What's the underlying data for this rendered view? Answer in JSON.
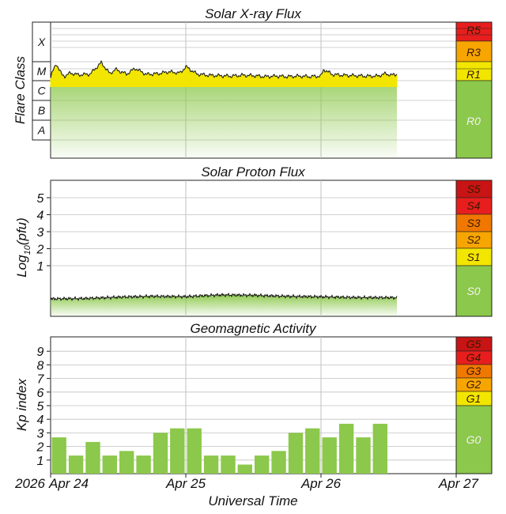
{
  "chart_data": [
    {
      "type": "area",
      "title": "Solar X-ray Flux",
      "ylabel": "Flare Class",
      "scale": "log",
      "class_labels": [
        "X",
        "M",
        "C",
        "B",
        "A"
      ],
      "x_range": [
        "2026-04-24T00:00",
        "2026-04-27T00:00"
      ],
      "x_data_end": "2026-04-26T13:30",
      "series": [
        {
          "x": [
            "2026-04-24T00:00",
            "2026-04-24T01:00",
            "2026-04-24T02:00",
            "2026-04-24T02:30",
            "2026-04-24T03:30",
            "2026-04-24T05:00",
            "2026-04-24T07:00",
            "2026-04-24T09:00",
            "2026-04-24T10:30",
            "2026-04-24T11:30",
            "2026-04-24T13:30",
            "2026-04-24T15:00",
            "2026-04-24T17:00",
            "2026-04-24T19:00",
            "2026-04-24T21:00",
            "2026-04-24T23:00",
            "2026-04-25T00:00",
            "2026-04-25T02:00",
            "2026-04-25T04:00",
            "2026-04-25T06:00",
            "2026-04-25T08:00",
            "2026-04-25T10:00",
            "2026-04-25T12:00",
            "2026-04-25T14:00",
            "2026-04-25T16:00",
            "2026-04-25T18:00",
            "2026-04-25T20:00",
            "2026-04-25T22:00",
            "2026-04-26T00:00",
            "2026-04-26T00:30",
            "2026-04-26T02:00",
            "2026-04-26T04:00",
            "2026-04-26T06:00",
            "2026-04-26T08:00",
            "2026-04-26T10:00",
            "2026-04-26T11:30",
            "2026-04-26T12:30",
            "2026-04-26T13:30"
          ],
          "y": [
            1.7e-06,
            8e-06,
            2.1e-06,
            1.8e-06,
            2.6e-06,
            2.1e-06,
            2.3e-06,
            9e-06,
            2.4e-06,
            4e-06,
            2.3e-06,
            4.5e-06,
            2.2e-06,
            2.4e-06,
            3e-06,
            2.6e-06,
            5.5e-06,
            2.3e-06,
            2e-06,
            1.9e-06,
            1.8e-06,
            2e-06,
            1.9e-06,
            1.7e-06,
            1.8e-06,
            1.7e-06,
            1.8e-06,
            1.7e-06,
            1.8e-06,
            4e-06,
            2.2e-06,
            2e-06,
            1.9e-06,
            1.8e-06,
            1.8e-06,
            2.4e-06,
            2e-06,
            2.3e-06
          ]
        }
      ],
      "scale_labels": [
        "R5",
        "R3",
        "R1",
        "R0"
      ]
    },
    {
      "type": "area",
      "title": "Solar Proton Flux",
      "ylabel": "Log10(pfu)",
      "ylabel_main": "Log",
      "ylabel_sub": "10",
      "ylabel_tail": "(pfu)",
      "yticks": [
        "5",
        "4",
        "3",
        "2",
        "1"
      ],
      "ylim": [
        -1.5,
        6
      ],
      "x_range": [
        "2026-04-24T00:00",
        "2026-04-27T00:00"
      ],
      "x_data_end": "2026-04-26T13:30",
      "series": [
        {
          "x": [
            "2026-04-24T00:00",
            "2026-04-24T06:00",
            "2026-04-24T12:00",
            "2026-04-24T18:00",
            "2026-04-25T00:00",
            "2026-04-25T06:00",
            "2026-04-25T12:00",
            "2026-04-25T18:00",
            "2026-04-26T00:00",
            "2026-04-26T06:00",
            "2026-04-26T13:30"
          ],
          "y": [
            -0.95,
            -0.93,
            -0.85,
            -0.8,
            -0.82,
            -0.72,
            -0.74,
            -0.8,
            -0.83,
            -0.87,
            -0.88
          ]
        }
      ],
      "scale_labels": [
        "S5",
        "S4",
        "S3",
        "S2",
        "S1",
        "S0"
      ]
    },
    {
      "type": "bar",
      "title": "Geomagnetic Activity",
      "ylabel": "Kp index",
      "yticks": [
        "9",
        "8",
        "7",
        "6",
        "5",
        "4",
        "3",
        "2",
        "1"
      ],
      "ylim": [
        0,
        10
      ],
      "x_range": [
        "2026-04-24T00:00",
        "2026-04-27T00:00"
      ],
      "bar_interval_hours": 3,
      "values": [
        2.67,
        1.33,
        2.33,
        1.33,
        1.67,
        1.33,
        3.0,
        3.33,
        3.33,
        1.33,
        1.33,
        0.67,
        1.33,
        1.67,
        3.0,
        3.33,
        2.67,
        3.67,
        2.67,
        3.67
      ],
      "scale_labels": [
        "G5",
        "G4",
        "G3",
        "G2",
        "G1",
        "G0"
      ]
    }
  ],
  "x_axis": {
    "year": "2026",
    "ticks": [
      "Apr 24",
      "Apr 25",
      "Apr 26",
      "Apr 27"
    ],
    "label": "Universal Time"
  },
  "colors": {
    "green": "#8cc84b",
    "yellow": "#f2e600",
    "orange": "#f7a500",
    "dark_orange": "#f07800",
    "red": "#e81e1e",
    "dark_red": "#c81414",
    "grid": "#c0c0c0"
  }
}
